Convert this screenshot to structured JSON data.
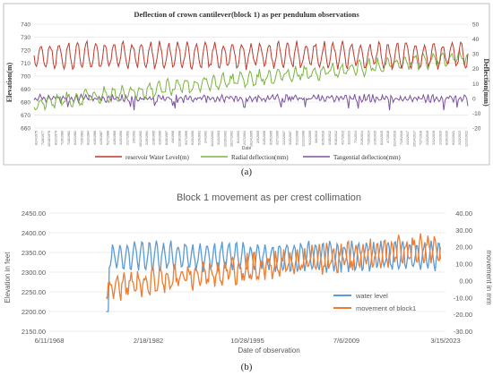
{
  "colors": {
    "water_level_a": "#c0392b",
    "radial": "#7cb342",
    "tangential": "#7a52a0",
    "water_level_b": "#5b9bd5",
    "movement": "#ed7d31",
    "grid": "#d9d9d9"
  },
  "chart_data": [
    {
      "type": "line",
      "title": "Deflection of crown cantilever(block 1) as per pendulum observations",
      "xlabel": "Date",
      "ylabel_left": "Elevation(m)",
      "ylabel_right": "Deflection(mm)",
      "ylim_left": [
        660,
        740
      ],
      "yticks_left": [
        660,
        670,
        680,
        690,
        700,
        710,
        720,
        730,
        740
      ],
      "ylim_right": [
        -20,
        50
      ],
      "yticks_right": [
        -20,
        -10,
        0,
        10,
        20,
        30,
        40,
        50
      ],
      "x_start_year": 1975.5,
      "x_end_year": 2023.0,
      "date_ticks": [
        "8/24/1975",
        "7/28/1977",
        "10/18/1978",
        "8/22/1979",
        "7/26/1980",
        "7/18/1981",
        "6/22/1982",
        "7/29/1983",
        "6/23/1984",
        "4/20/1986",
        "4/29/1987",
        "5/27/1988",
        "4/26/1989",
        "3/25/1990",
        "2/17/1991",
        "2/6/1992",
        "10/12/1992",
        "2/26/1994",
        "2/18/1995",
        "3/20/1996",
        "8/28/1997",
        "4/6/1998",
        "12/18/1998",
        "9/17/1999",
        "5/20/2000",
        "5/29/2001",
        "2/4/2002",
        "11/24/2002",
        "3/13/2003",
        "12/20/2003",
        "10/17/2002",
        "8/4/2003",
        "2/17/2004",
        "10/24/2005",
        "2/5/2005",
        "3/25/2006",
        "9/25/2005",
        "3/27/2006",
        "1/24/2007",
        "3/20/2007",
        "5/12/2008",
        "11/21/2008",
        "9/21/2009",
        "3/6/2010",
        "8/15/2010",
        "1/18/2012",
        "9/16/2012",
        "4/17/2013",
        "11/2/2013",
        "7/1/2014",
        "2/19/2014",
        "7/26/2014",
        "1/19/2015",
        "8/24/2015",
        "4/7/2016",
        "11/14/2016",
        "7/19/2016",
        "1/21/2017",
        "10/14/2017",
        "7/27/2018",
        "2/23/2019",
        "1/12/2019",
        "1/13/2020",
        "8/26/2020",
        "6/22/2021",
        "2/23/2022",
        "12/22/2022"
      ],
      "series": [
        {
          "name": "reservoir Water Level(m)",
          "axis": "left"
        },
        {
          "name": "Radial deflection(mm)",
          "axis": "right"
        },
        {
          "name": "Tangential deflection(mm)",
          "axis": "right"
        }
      ],
      "series_model": {
        "water_level": {
          "mean": 716,
          "amplitude": 9,
          "range": [
            697,
            732
          ]
        },
        "radial": {
          "start_mean": -4,
          "end_mean": 28,
          "amplitude": 4,
          "range": [
            -12,
            38
          ]
        },
        "tangential": {
          "mean": 0,
          "amplitude": 1.5,
          "range": [
            -8,
            6
          ]
        }
      },
      "caption": "(a)"
    },
    {
      "type": "line",
      "title": "Block 1 movement as per crest collimation",
      "xlabel": "Date of observation",
      "ylabel_left": "Elevation in feet",
      "ylabel_right": "movement in mm",
      "ylim_left": [
        2150,
        2450
      ],
      "yticks_left": [
        "2150.00",
        "2200.00",
        "2250.00",
        "2300.00",
        "2350.00",
        "2400.00",
        "2450.00"
      ],
      "ylim_right": [
        -30,
        40
      ],
      "yticks_right": [
        "-30.00",
        "-20.00",
        "-10.00",
        "0.00",
        "10.00",
        "20.00",
        "30.00",
        "40.00"
      ],
      "x_range_year": [
        1968.44,
        2023.2
      ],
      "xticks": [
        "6/11/1968",
        "2/18/1982",
        "10/28/1995",
        "7/6/2009",
        "3/15/2023"
      ],
      "xtick_years": [
        1968.44,
        1982.13,
        1995.82,
        2009.51,
        2023.2
      ],
      "legend_position": "bottom-right",
      "series": [
        {
          "name": "water level",
          "axis": "left"
        },
        {
          "name": "movement of block1",
          "axis": "right"
        }
      ],
      "series_model": {
        "water_level": {
          "start_year": 1976.3,
          "end_year": 2022.5,
          "start_value": 2200,
          "mean": 2340,
          "amplitude": 32,
          "range": [
            2200,
            2402
          ]
        },
        "movement": {
          "start_year": 1976.3,
          "end_year": 2022.5,
          "start_mean": -5,
          "end_mean": 20,
          "amplitude": 6,
          "range": [
            -20,
            35
          ]
        }
      },
      "caption": "(b)"
    }
  ]
}
